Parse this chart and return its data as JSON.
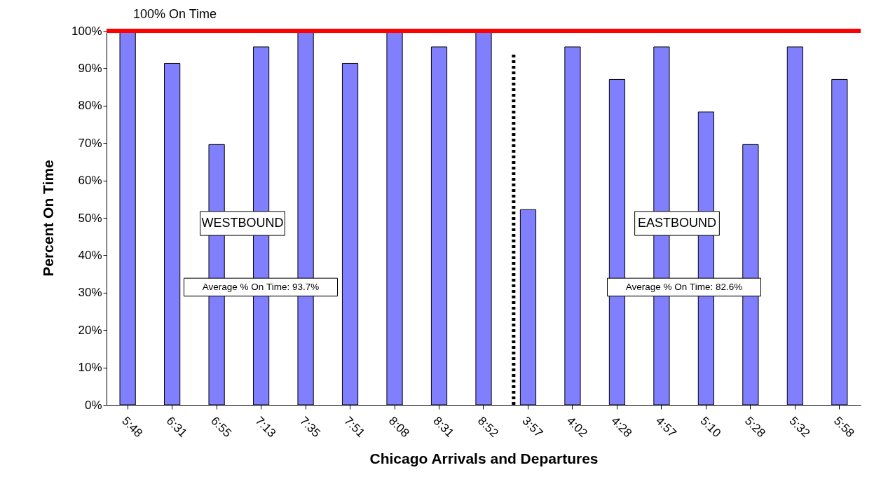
{
  "chart_data": {
    "type": "bar",
    "xlabel": "Chicago Arrivals and Departures",
    "ylabel": "Percent On Time",
    "categories": [
      "5:48",
      "6:31",
      "6:55",
      "7:13",
      "7:35",
      "7:51",
      "8:08",
      "8:31",
      "8:52",
      "3:57",
      "4:02",
      "4:28",
      "4:57",
      "5:10",
      "5:28",
      "5:32",
      "5:58"
    ],
    "values": [
      100,
      91.3,
      69.6,
      95.7,
      100,
      91.3,
      100,
      95.7,
      100,
      52.2,
      95.7,
      87,
      95.7,
      78.3,
      69.6,
      95.7,
      87
    ],
    "color": "#8080ff",
    "ylim": [
      0,
      100
    ],
    "yticks": [
      {
        "value": 0,
        "label": "0%"
      },
      {
        "value": 10,
        "label": "10%"
      },
      {
        "value": 20,
        "label": "20%"
      },
      {
        "value": 30,
        "label": "30%"
      },
      {
        "value": 40,
        "label": "40%"
      },
      {
        "value": 50,
        "label": "50%"
      },
      {
        "value": 60,
        "label": "60%"
      },
      {
        "value": 70,
        "label": "70%"
      },
      {
        "value": 80,
        "label": "80%"
      },
      {
        "value": 90,
        "label": "90%"
      },
      {
        "value": 100,
        "label": "100%"
      }
    ],
    "ref_lines": [
      {
        "axis": "y",
        "value": 100,
        "label": "100% On Time",
        "color": "#ff0000"
      },
      {
        "axis": "x",
        "value": "3:57",
        "label": null,
        "color": "#000000",
        "line_style": "dotted"
      }
    ],
    "annotations": [
      "WESTBOUND",
      "EASTBOUND",
      "Average % On Time:  93.7%",
      "Average % On Time:  82.6%"
    ],
    "grid": false
  }
}
